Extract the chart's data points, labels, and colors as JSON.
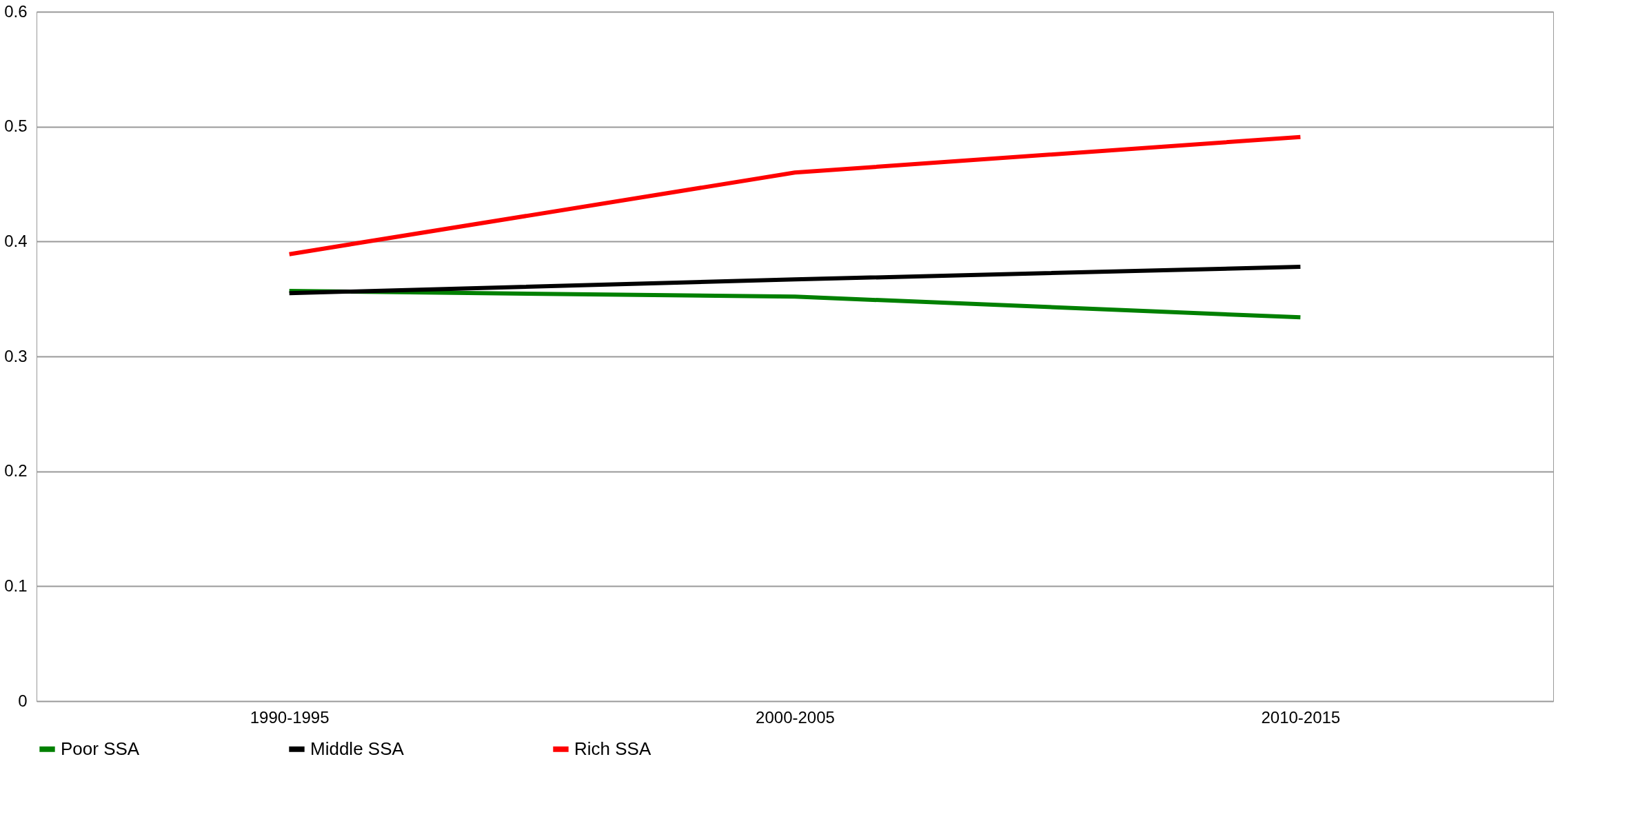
{
  "chart_data": {
    "type": "line",
    "categories": [
      "1990-1995",
      "2000-2005",
      "2010-2015"
    ],
    "series": [
      {
        "name": "Poor SSA",
        "color": "#008000",
        "values": [
          0.357,
          0.352,
          0.334
        ]
      },
      {
        "name": "Middle SSA",
        "color": "#000000",
        "values": [
          0.355,
          0.367,
          0.378
        ]
      },
      {
        "name": "Rich SSA",
        "color": "#ff0000",
        "values": [
          0.389,
          0.46,
          0.491
        ]
      }
    ],
    "ylim": [
      0,
      0.6
    ],
    "yticks": [
      0,
      0.1,
      0.2,
      0.3,
      0.4,
      0.5,
      0.6
    ],
    "grid": "y",
    "legend": "bottom",
    "marker": "none",
    "line_style": "solid"
  }
}
